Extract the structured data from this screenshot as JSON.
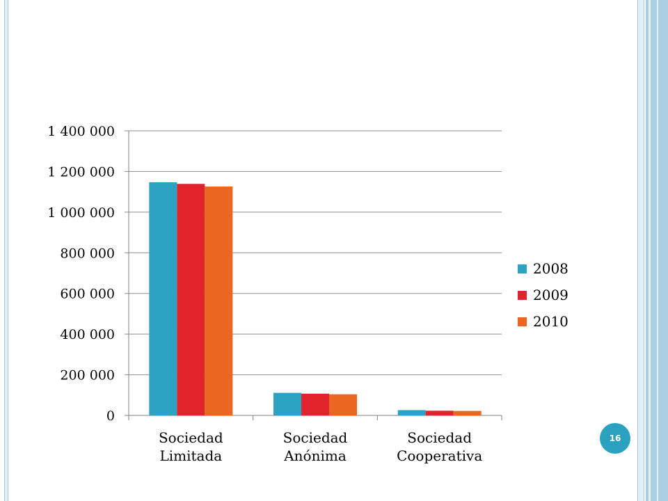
{
  "slide": {
    "page_number": "16"
  },
  "chart_data": {
    "type": "bar",
    "categories": [
      [
        "Sociedad",
        "Limitada"
      ],
      [
        "Sociedad",
        "Anónima"
      ],
      [
        "Sociedad",
        "Cooperativa"
      ]
    ],
    "series": [
      {
        "name": "2008",
        "color": "#2ea3c1",
        "values": [
          1147000,
          111000,
          26000
        ]
      },
      {
        "name": "2009",
        "color": "#e0232d",
        "values": [
          1139000,
          107000,
          23000
        ]
      },
      {
        "name": "2010",
        "color": "#eb6620",
        "values": [
          1126000,
          104000,
          22000
        ]
      }
    ],
    "yticks": [
      {
        "value": 0,
        "label": "0"
      },
      {
        "value": 200000,
        "label": "200 000"
      },
      {
        "value": 400000,
        "label": "400 000"
      },
      {
        "value": 600000,
        "label": "600 000"
      },
      {
        "value": 800000,
        "label": "800 000"
      },
      {
        "value": 1000000,
        "label": "1 000 000"
      },
      {
        "value": 1200000,
        "label": "1 200 000"
      },
      {
        "value": 1400000,
        "label": "1 400 000"
      }
    ],
    "ylim": [
      0,
      1400000
    ],
    "grid": true,
    "legend": "right"
  }
}
